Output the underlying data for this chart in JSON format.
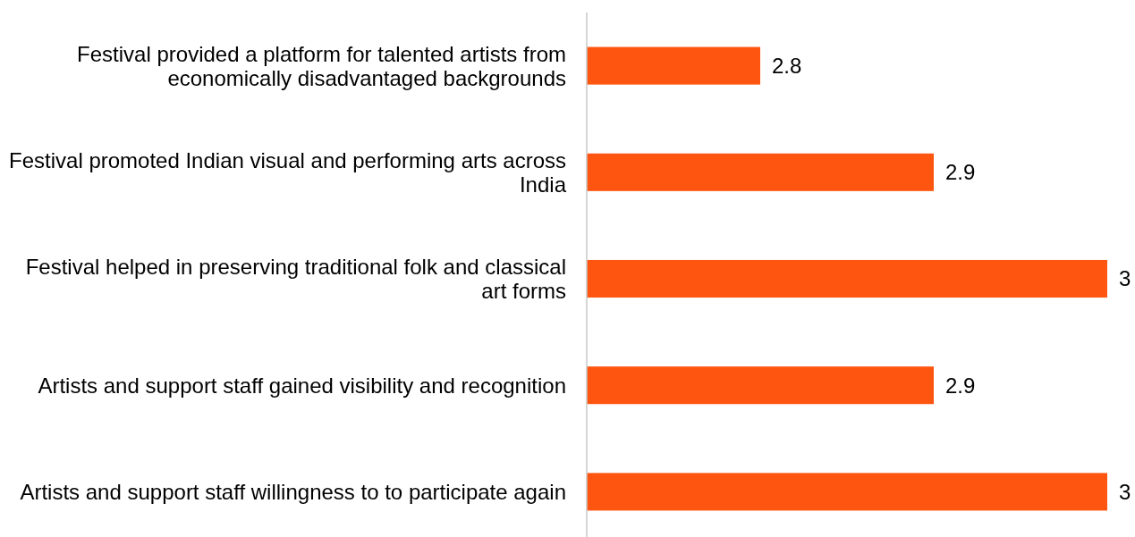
{
  "chart_data": {
    "type": "bar",
    "orientation": "horizontal",
    "categories": [
      "Festival provided a platform for talented artists from economically disadvantaged backgrounds",
      "Festival promoted Indian visual and performing arts across India",
      "Festival helped in preserving traditional folk and classical art forms",
      "Artists and support staff gained visibility and recognition",
      "Artists and support staff willingness to to participate again"
    ],
    "values": [
      2.8,
      2.9,
      3,
      2.9,
      3
    ],
    "color": "#fe5610",
    "xlim": [
      2.7,
      3
    ],
    "data_labels": true,
    "tick_labels": "y"
  }
}
